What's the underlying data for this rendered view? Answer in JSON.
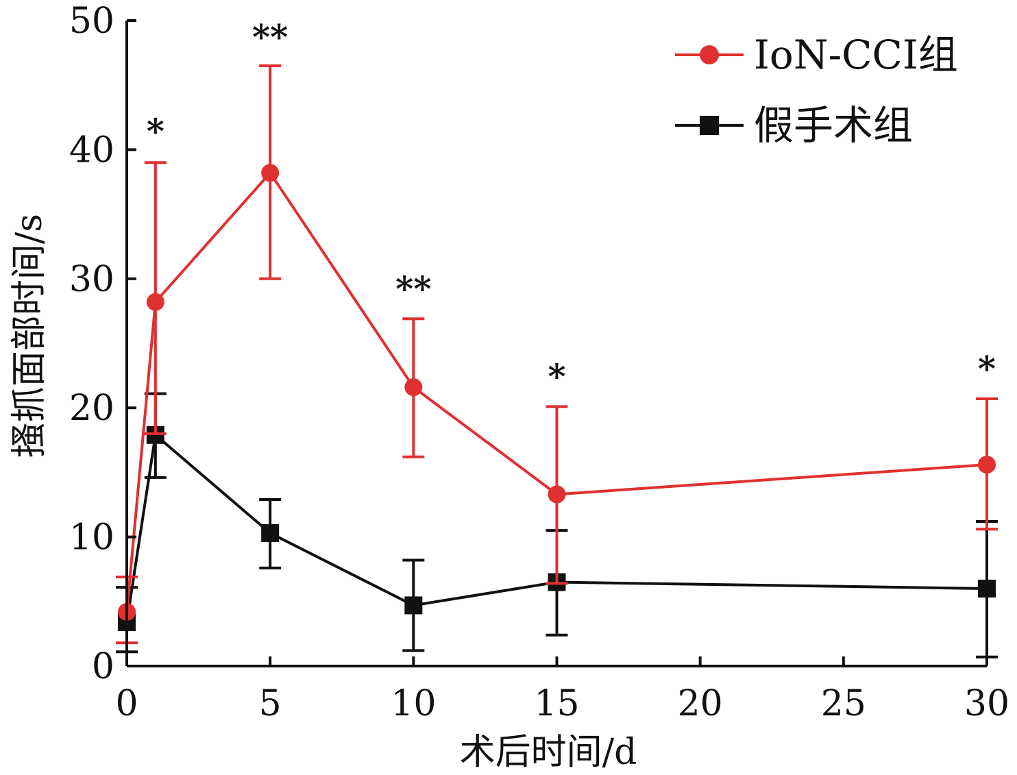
{
  "chart_data": {
    "type": "line",
    "xlabel": "术后时间/d",
    "ylabel": "搔抓面部时间/s",
    "xlim": [
      0,
      30
    ],
    "ylim": [
      0,
      50
    ],
    "x_ticks": [
      "0",
      "5",
      "10",
      "15",
      "20",
      "25",
      "30"
    ],
    "x_tick_values": [
      0,
      5,
      10,
      15,
      20,
      25,
      30
    ],
    "y_ticks": [
      "0",
      "10",
      "20",
      "30",
      "40",
      "50"
    ],
    "y_tick_values": [
      0,
      10,
      20,
      30,
      40,
      50
    ],
    "grid": false,
    "legend_position": "top-right",
    "series": [
      {
        "name": "IoN-CCI组",
        "color": "#e03030",
        "marker": "circle",
        "x": [
          0,
          1,
          5,
          10,
          15,
          30
        ],
        "y": [
          4.2,
          28.2,
          38.2,
          21.6,
          13.3,
          15.6
        ],
        "err_upper": [
          6.9,
          39.0,
          46.5,
          26.9,
          20.1,
          20.7
        ],
        "err_lower": [
          1.8,
          18.0,
          30.0,
          16.2,
          6.4,
          10.6
        ]
      },
      {
        "name": "假手术组",
        "color": "#111111",
        "marker": "square",
        "x": [
          0,
          1,
          5,
          10,
          15,
          30
        ],
        "y": [
          3.4,
          17.9,
          10.3,
          4.7,
          6.5,
          6.0
        ],
        "err_upper": [
          6.1,
          21.1,
          12.9,
          8.2,
          10.5,
          11.2
        ],
        "err_lower": [
          1.1,
          14.6,
          7.6,
          1.2,
          2.4,
          0.7
        ]
      }
    ],
    "annotations": [
      {
        "text": "*",
        "x": 1,
        "y": 40.5
      },
      {
        "text": "**",
        "x": 5,
        "y": 47.8
      },
      {
        "text": "**",
        "x": 10,
        "y": 28.3
      },
      {
        "text": "*",
        "x": 15,
        "y": 21.5
      },
      {
        "text": "*",
        "x": 30,
        "y": 22.1
      }
    ]
  }
}
